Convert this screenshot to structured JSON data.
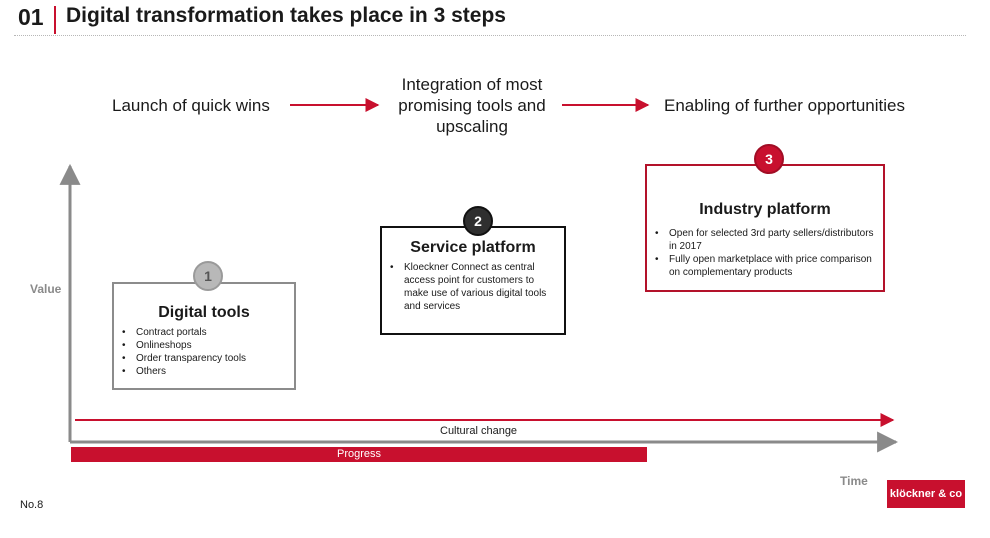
{
  "header": {
    "section_number": "01",
    "title": "Digital transformation takes place in 3 steps"
  },
  "steps": [
    "Launch of quick wins",
    "Integration of most promising tools and upscaling",
    "Enabling of further opportunities"
  ],
  "boxes": [
    {
      "number": "1",
      "title": "Digital tools",
      "bullets": [
        "Contract portals",
        "Onlineshops",
        "Order transparency tools",
        "Others"
      ]
    },
    {
      "number": "2",
      "title": "Service platform",
      "bullets": [
        "Kloeckner Connect as central access point for customers to make use of various digital tools and services"
      ]
    },
    {
      "number": "3",
      "title": "Industry platform",
      "bullets": [
        "Open for selected 3rd party sellers/distributors in 2017",
        "Fully open marketplace with price comparison on complementary products"
      ]
    }
  ],
  "axes": {
    "y_label": "Value",
    "x_label": "Time"
  },
  "cultural_change_label": "Cultural change",
  "progress_label": "Progress",
  "footer": {
    "page_number": "No.8",
    "logo_text": "klöckner & co"
  },
  "colors": {
    "accent": "#c8102e",
    "axis": "#8a8a8a"
  }
}
